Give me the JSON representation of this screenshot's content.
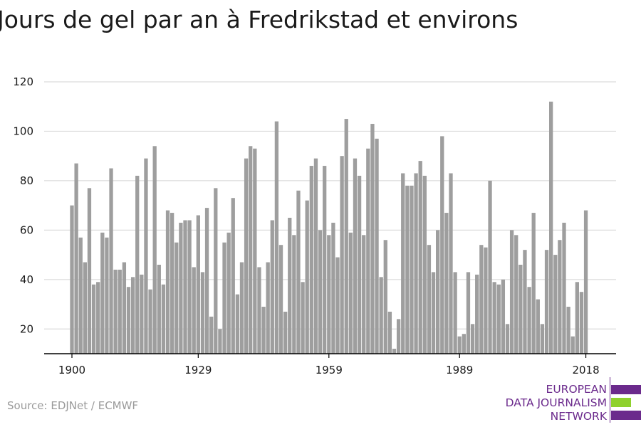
{
  "title": "Jours de gel par an à Fredrikstad et environs",
  "source": "Source: EDJNet / ECMWF",
  "logo": {
    "lines": [
      "EUROPEAN",
      "DATA JOURNALISM",
      "NETWORK"
    ],
    "colors": {
      "purple": "#6b2a8c",
      "green": "#8fd12e"
    }
  },
  "colors": {
    "bar": "#9e9e9e",
    "grid": "#dcdcdc",
    "axis": "#000000",
    "text": "#1a1a1a"
  },
  "chart_data": {
    "type": "bar",
    "title": "Jours de gel par an à Fredrikstad et environs",
    "xlabel": "",
    "ylabel": "",
    "ylim": [
      10,
      120
    ],
    "yticks": [
      20,
      40,
      60,
      80,
      100,
      120
    ],
    "xticks": [
      1900,
      1929,
      1959,
      1989,
      2018
    ],
    "grid": true,
    "x": [
      1900,
      1901,
      1902,
      1903,
      1904,
      1905,
      1906,
      1907,
      1908,
      1909,
      1910,
      1911,
      1912,
      1913,
      1914,
      1915,
      1916,
      1917,
      1918,
      1919,
      1920,
      1921,
      1922,
      1923,
      1924,
      1925,
      1926,
      1927,
      1928,
      1929,
      1930,
      1931,
      1932,
      1933,
      1934,
      1935,
      1936,
      1937,
      1938,
      1939,
      1940,
      1941,
      1942,
      1943,
      1944,
      1945,
      1946,
      1947,
      1948,
      1949,
      1950,
      1951,
      1952,
      1953,
      1954,
      1955,
      1956,
      1957,
      1958,
      1959,
      1960,
      1961,
      1962,
      1963,
      1964,
      1965,
      1966,
      1967,
      1968,
      1969,
      1970,
      1971,
      1972,
      1973,
      1974,
      1975,
      1976,
      1977,
      1978,
      1979,
      1980,
      1981,
      1982,
      1983,
      1984,
      1985,
      1986,
      1987,
      1988,
      1989,
      1990,
      1991,
      1992,
      1993,
      1994,
      1995,
      1996,
      1997,
      1998,
      1999,
      2000,
      2001,
      2002,
      2003,
      2004,
      2005,
      2006,
      2007,
      2008,
      2009,
      2010,
      2011,
      2012,
      2013,
      2014,
      2015,
      2016,
      2017,
      2018
    ],
    "values": [
      70,
      87,
      57,
      47,
      77,
      38,
      39,
      59,
      57,
      85,
      44,
      44,
      47,
      37,
      41,
      82,
      42,
      89,
      36,
      94,
      46,
      38,
      68,
      67,
      55,
      63,
      64,
      64,
      45,
      66,
      43,
      69,
      25,
      77,
      20,
      55,
      59,
      73,
      34,
      47,
      89,
      94,
      93,
      45,
      29,
      47,
      64,
      104,
      54,
      27,
      65,
      58,
      76,
      39,
      72,
      86,
      89,
      60,
      86,
      58,
      63,
      49,
      90,
      105,
      59,
      89,
      82,
      58,
      93,
      103,
      97,
      41,
      56,
      27,
      12,
      24,
      83,
      78,
      78,
      83,
      88,
      82,
      54,
      43,
      60,
      98,
      67,
      83,
      43,
      17,
      18,
      43,
      22,
      42,
      54,
      53,
      80,
      39,
      38,
      40,
      22,
      60,
      58,
      46,
      52,
      37,
      67,
      32,
      22,
      52,
      112,
      50,
      56,
      63,
      29,
      17,
      39,
      35,
      68
    ]
  }
}
